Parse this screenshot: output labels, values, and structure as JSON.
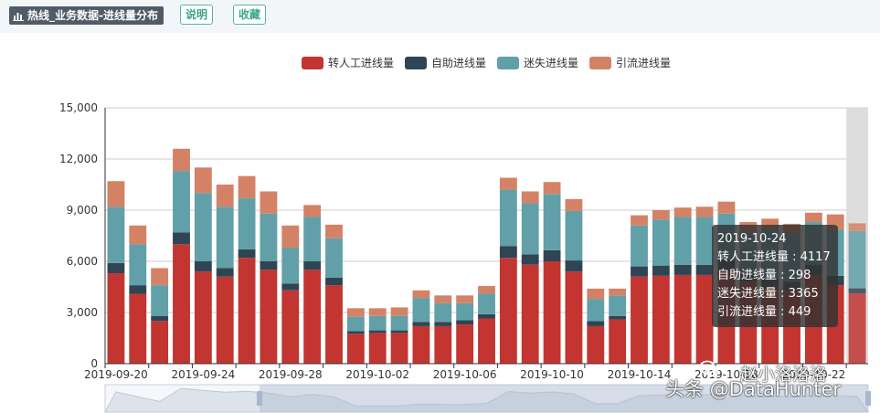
{
  "header": {
    "title": "热线_业务数据-进线量分布",
    "buttons": {
      "explain": "说明",
      "favorite": "收藏"
    }
  },
  "colors": {
    "series": [
      "#c23531",
      "#2f4554",
      "#61a0a8",
      "#d48265"
    ]
  },
  "chart_data": {
    "type": "bar",
    "stacked": true,
    "legend_position": "top-center",
    "x": [
      "2019-09-20",
      "2019-09-21",
      "2019-09-22",
      "2019-09-23",
      "2019-09-24",
      "2019-09-25",
      "2019-09-26",
      "2019-09-27",
      "2019-09-28",
      "2019-09-29",
      "2019-09-30",
      "2019-10-01",
      "2019-10-02",
      "2019-10-03",
      "2019-10-04",
      "2019-10-05",
      "2019-10-06",
      "2019-10-07",
      "2019-10-08",
      "2019-10-09",
      "2019-10-10",
      "2019-10-11",
      "2019-10-12",
      "2019-10-13",
      "2019-10-14",
      "2019-10-15",
      "2019-10-16",
      "2019-10-17",
      "2019-10-18",
      "2019-10-19",
      "2019-10-20",
      "2019-10-21",
      "2019-10-22",
      "2019-10-23",
      "2019-10-24"
    ],
    "x_tick_labels": [
      "2019-09-20",
      "2019-09-24",
      "2019-09-28",
      "2019-10-02",
      "2019-10-06",
      "2019-10-10",
      "2019-10-14",
      "2019-10-18",
      "2019-10-22"
    ],
    "ylim": [
      0,
      15000
    ],
    "y_ticks": [
      "0",
      "3,000",
      "6,000",
      "9,000",
      "12,000",
      "15,000"
    ],
    "series": [
      {
        "name": "转人工进线量",
        "values": [
          5300,
          4100,
          2500,
          7000,
          5400,
          5100,
          6200,
          5500,
          4300,
          5500,
          4600,
          1750,
          1800,
          1800,
          2200,
          2200,
          2300,
          2650,
          6200,
          5800,
          6000,
          5400,
          2200,
          2600,
          5100,
          5150,
          5200,
          5200,
          5500,
          4800,
          4500,
          4300,
          5200,
          4600,
          4117
        ]
      },
      {
        "name": "自助进线量",
        "values": [
          600,
          500,
          300,
          700,
          600,
          500,
          500,
          500,
          400,
          500,
          450,
          150,
          150,
          150,
          250,
          250,
          250,
          250,
          700,
          600,
          650,
          650,
          300,
          200,
          600,
          600,
          600,
          600,
          600,
          500,
          500,
          500,
          600,
          550,
          298
        ]
      },
      {
        "name": "迷失进线量",
        "values": [
          3300,
          2400,
          1800,
          3600,
          4000,
          3600,
          3000,
          2800,
          2100,
          2600,
          2300,
          850,
          850,
          850,
          1400,
          1100,
          1000,
          1200,
          3300,
          3000,
          3300,
          2900,
          1300,
          1200,
          2400,
          2700,
          2800,
          2800,
          2700,
          2400,
          2900,
          2800,
          2500,
          2700,
          3365
        ]
      },
      {
        "name": "引流进线量",
        "values": [
          1500,
          1100,
          1000,
          1300,
          1500,
          1300,
          1300,
          1300,
          1300,
          700,
          800,
          500,
          450,
          500,
          450,
          450,
          450,
          450,
          700,
          700,
          700,
          700,
          600,
          400,
          600,
          550,
          550,
          600,
          700,
          600,
          600,
          600,
          550,
          900,
          449
        ]
      }
    ],
    "tooltip": {
      "title": "2019-10-24",
      "rows": [
        "转人工进线量 : 4117",
        "自助进线量 : 298",
        "迷失进线量 : 3365",
        "引流进线量 : 449"
      ]
    },
    "highlight_index": 34
  },
  "watermark": {
    "text": "头条 @DataHunter",
    "name": "赵小洛洛洛"
  }
}
